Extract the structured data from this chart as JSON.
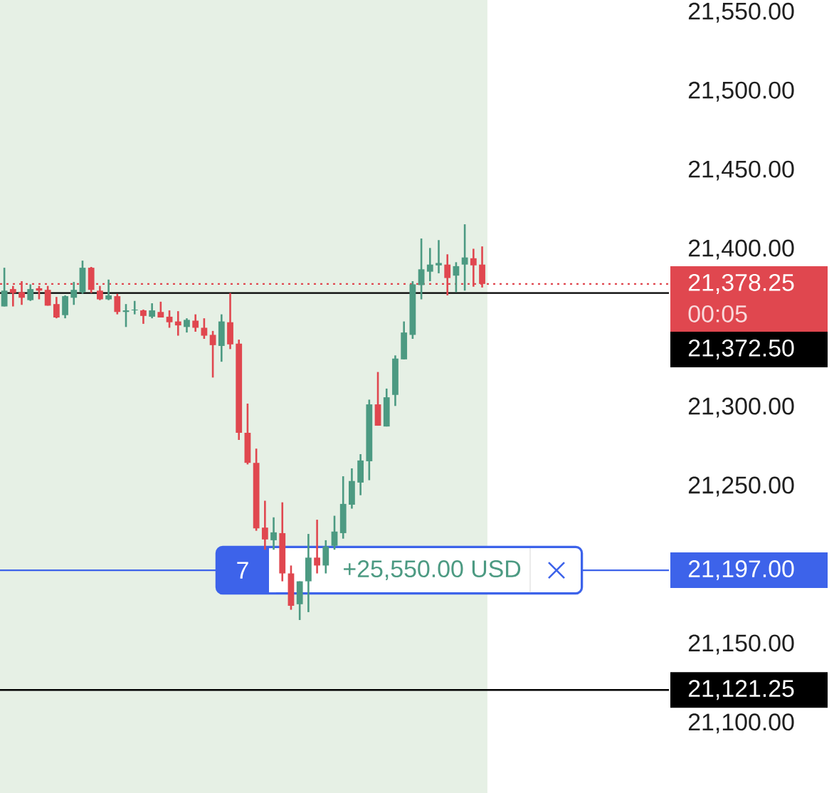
{
  "chart_data": {
    "type": "candlestick",
    "categories": [
      null,
      null,
      null,
      null,
      null,
      null,
      null,
      null,
      null,
      null,
      null,
      null,
      null,
      null,
      null,
      null,
      null,
      null,
      null,
      null,
      null,
      null,
      null,
      null,
      null,
      null,
      null,
      null,
      null,
      null,
      null,
      null,
      null,
      null,
      null,
      null,
      null,
      null,
      null,
      null,
      null,
      null,
      null,
      null,
      null,
      null,
      null,
      null,
      null,
      null,
      null,
      null,
      null,
      null,
      null,
      null,
      null,
      null,
      null,
      null,
      null,
      null,
      null,
      null,
      null,
      null,
      null,
      null,
      null,
      null,
      null,
      null,
      null,
      null,
      null,
      null,
      null
    ],
    "ohlc": [
      [
        21364,
        21388.5,
        21364,
        21374
      ],
      [
        21375,
        21377,
        21364,
        21372.5
      ],
      [
        21373,
        21380,
        21365,
        21369.5
      ],
      [
        21368,
        21378,
        21367.5,
        21375
      ],
      [
        21375.5,
        21377,
        21368.5,
        21374
      ],
      [
        21374.5,
        21377,
        21364.5,
        21364.5
      ],
      [
        21365.5,
        21370,
        21356.5,
        21357
      ],
      [
        21358.5,
        21371,
        21356.5,
        21370.5
      ],
      [
        21369.5,
        21379.5,
        21365,
        21374.5
      ],
      [
        21373,
        21393,
        21372,
        21388.5
      ],
      [
        21388.5,
        21389,
        21372.5,
        21374.5
      ],
      [
        21374,
        21377,
        21368,
        21368.5
      ],
      [
        21368.5,
        21381,
        21368,
        21371
      ],
      [
        21370.5,
        21372,
        21359,
        21360.5
      ],
      [
        21360.5,
        21365.5,
        21351,
        21361.5
      ],
      [
        21361.5,
        21367.5,
        21359,
        21362
      ],
      [
        21361.5,
        21362,
        21353,
        21358
      ],
      [
        21357.5,
        21366,
        21356.5,
        21361.5
      ],
      [
        21360.5,
        21367,
        21357,
        21357
      ],
      [
        21357.5,
        21361.5,
        21350.5,
        21354
      ],
      [
        21354.5,
        21361,
        21345.5,
        21352
      ],
      [
        21351,
        21356.5,
        21347.5,
        21355.5
      ],
      [
        21355,
        21359,
        21348,
        21350.5
      ],
      [
        21350.5,
        21356.5,
        21343.5,
        21345.5
      ],
      [
        21346,
        21348.5,
        21319,
        21339.5
      ],
      [
        21339,
        21359,
        21329,
        21354.5
      ],
      [
        21354,
        21372.5,
        21337,
        21340
      ],
      [
        21340.5,
        21343,
        21279.5,
        21284
      ],
      [
        21284,
        21302.5,
        21264,
        21265
      ],
      [
        21265,
        21274,
        21222,
        21223.5
      ],
      [
        21224,
        21241,
        21210,
        21216.5
      ],
      [
        21216,
        21230.5,
        21210,
        21221
      ],
      [
        21220.5,
        21240,
        21190,
        21195
      ],
      [
        21195,
        21200,
        21172,
        21174.5
      ],
      [
        21175.5,
        21190,
        21165.5,
        21190
      ],
      [
        21190,
        21220,
        21170.5,
        21205
      ],
      [
        21205,
        21229,
        21195,
        21200
      ],
      [
        21200,
        21216,
        21195,
        21212
      ],
      [
        21212.5,
        21231.5,
        21210,
        21221.5
      ],
      [
        21220.5,
        21256.5,
        21217,
        21239
      ],
      [
        21238.5,
        21261.5,
        21236,
        21253.5
      ],
      [
        21252.5,
        21270.5,
        21244.5,
        21266.5
      ],
      [
        21266,
        21305,
        21254,
        21302
      ],
      [
        21302,
        21322.5,
        21288.5,
        21288.5
      ],
      [
        21288,
        21312,
        21288,
        21306.5
      ],
      [
        21308,
        21333,
        21301,
        21331
      ],
      [
        21330.5,
        21354.5,
        21330.5,
        21347.5
      ],
      [
        21346,
        21380,
        21343.5,
        21378
      ],
      [
        21377.5,
        21407,
        21368.5,
        21387.5
      ],
      [
        21386,
        21401,
        21380,
        21390.5
      ],
      [
        21390,
        21406,
        21385,
        21391.5
      ],
      [
        21390.5,
        21397,
        21371,
        21382
      ],
      [
        21383.5,
        21392,
        21373,
        21389.5
      ],
      [
        21390.5,
        21416,
        21374,
        21395
      ],
      [
        21394.5,
        21400.5,
        21376.5,
        21390
      ],
      [
        21390.5,
        21402,
        21376,
        21378.25
      ],
      null,
      null,
      null,
      null,
      null,
      null,
      null,
      null,
      null,
      null,
      null,
      null,
      null,
      null,
      null,
      null,
      null,
      null,
      null,
      null,
      null
    ],
    "colors": [
      "#4c9a82",
      "#e0474f",
      "#e0474f",
      "#4c9a82",
      "#e0474f",
      "#e0474f",
      "#e0474f",
      "#4c9a82",
      "#4c9a82",
      "#4c9a82",
      "#e0474f",
      "#e0474f",
      "#4c9a82",
      "#e0474f",
      "#4c9a82",
      "#4c9a82",
      "#e0474f",
      "#4c9a82",
      "#e0474f",
      "#e0474f",
      "#e0474f",
      "#4c9a82",
      "#e0474f",
      "#e0474f",
      "#e0474f",
      "#4c9a82",
      "#e0474f",
      "#e0474f",
      "#e0474f",
      "#e0474f",
      "#e0474f",
      "#4c9a82",
      "#e0474f",
      "#e0474f",
      "#4c9a82",
      "#4c9a82",
      "#e0474f",
      "#4c9a82",
      "#4c9a82",
      "#4c9a82",
      "#4c9a82",
      "#4c9a82",
      "#4c9a82",
      "#e0474f",
      "#4c9a82",
      "#4c9a82",
      "#4c9a82",
      "#4c9a82",
      "#4c9a82",
      "#4c9a82",
      "#4c9a82",
      "#e0474f",
      "#4c9a82",
      "#4c9a82",
      "#e0474f",
      "#e0474f",
      null,
      null,
      null,
      null,
      null,
      null,
      null,
      null,
      null,
      null,
      null,
      null,
      null,
      null,
      null,
      null,
      null,
      null,
      null,
      null,
      null
    ],
    "ylim": [
      21056,
      21558
    ],
    "yticks": [
      {
        "value": 21100,
        "label": "21,100.00"
      },
      {
        "value": 21150,
        "label": "21,150.00"
      },
      {
        "value": 21250,
        "label": "21,250.00"
      },
      {
        "value": 21300,
        "label": "21,300.00"
      },
      {
        "value": 21400,
        "label": "21,400.00"
      },
      {
        "value": 21450,
        "label": "21,450.00"
      },
      {
        "value": 21500,
        "label": "21,500.00"
      },
      {
        "value": 21550,
        "label": "21,550.00"
      }
    ],
    "tick_labels": "y",
    "ref_lines": [
      {
        "axis": "y",
        "value": 21378.25,
        "label": "21,378.25",
        "color": "#e0474f",
        "line_style": "dotted"
      },
      {
        "axis": "y",
        "value": 21372.5,
        "label": "21,372.50",
        "color": "#000000",
        "line_style": "solid"
      },
      {
        "axis": "y",
        "value": 21197,
        "label": "21,197.00",
        "color": "#3d63ea",
        "line_style": "solid"
      },
      {
        "axis": "y",
        "value": 21121.25,
        "label": "21,121.25",
        "color": "#000000",
        "line_style": "solid"
      }
    ],
    "annotations": [
      "00:05",
      {
        "text": "7",
        "y": 21197
      },
      {
        "text": "+25,550.00 USD",
        "y": 21197
      }
    ]
  }
}
